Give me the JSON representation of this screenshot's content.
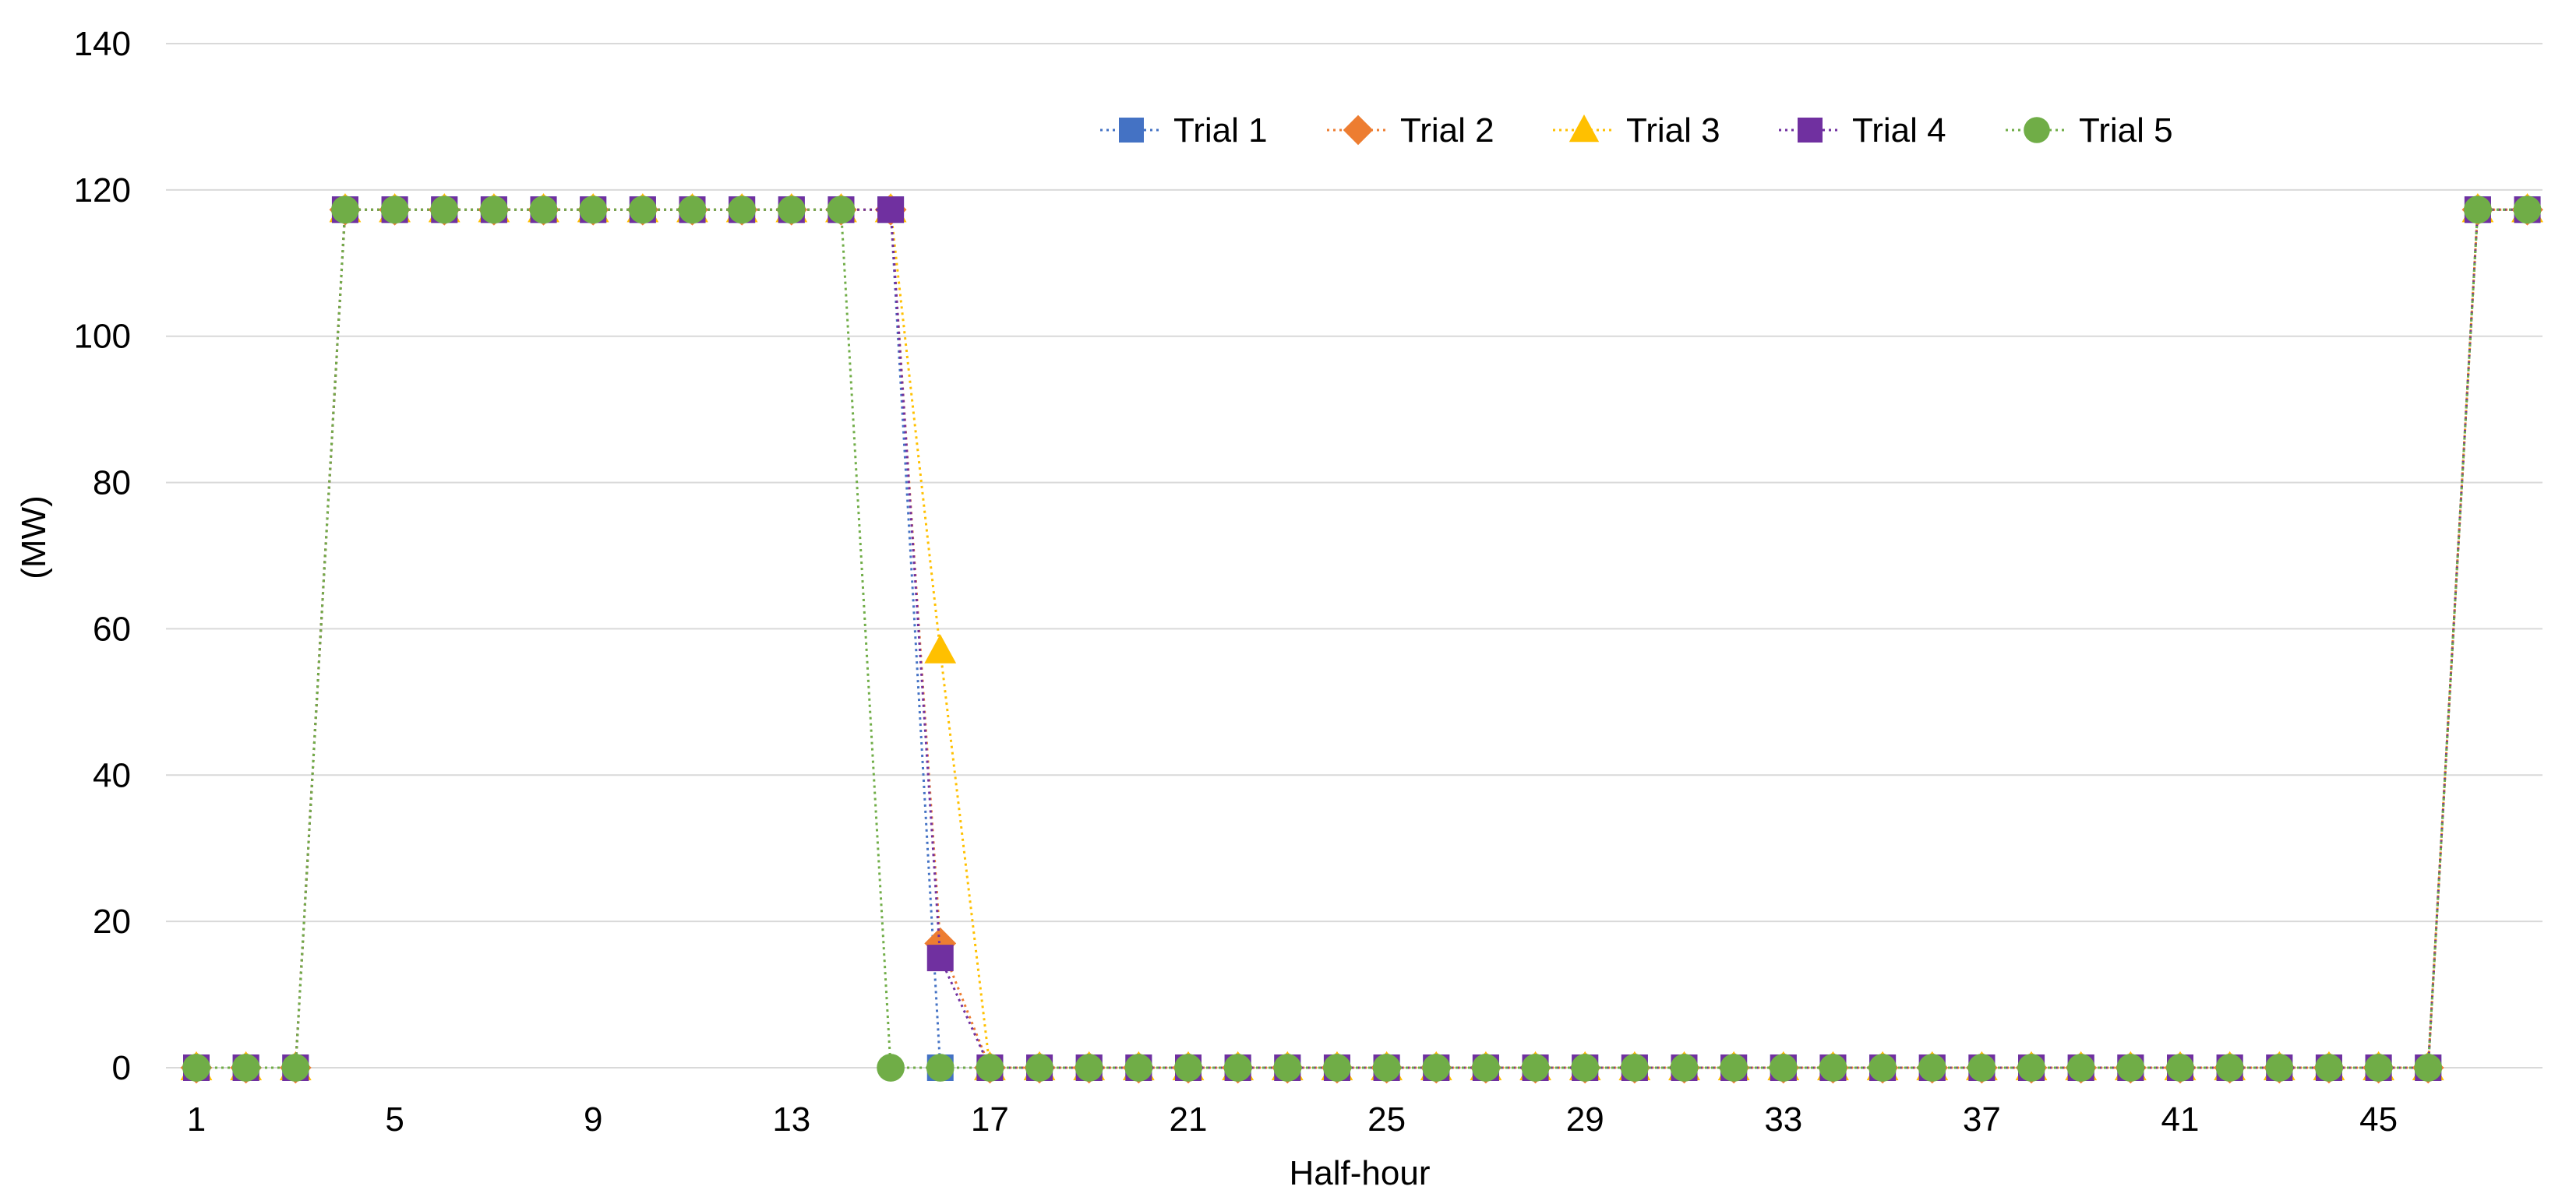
{
  "chart_data": {
    "type": "line",
    "xlabel": "Half-hour",
    "ylabel": "(MW)",
    "xlim": [
      1,
      48
    ],
    "ylim": [
      0,
      140
    ],
    "y_ticks": [
      0,
      20,
      40,
      60,
      80,
      100,
      120,
      140
    ],
    "x_tick_labels": [
      1,
      5,
      9,
      13,
      17,
      21,
      25,
      29,
      33,
      37,
      41,
      45
    ],
    "x": [
      1,
      2,
      3,
      4,
      5,
      6,
      7,
      8,
      9,
      10,
      11,
      12,
      13,
      14,
      15,
      16,
      17,
      18,
      19,
      20,
      21,
      22,
      23,
      24,
      25,
      26,
      27,
      28,
      29,
      30,
      31,
      32,
      33,
      34,
      35,
      36,
      37,
      38,
      39,
      40,
      41,
      42,
      43,
      44,
      45,
      46,
      47,
      48
    ],
    "grid": "horizontal",
    "legend_position": "top",
    "series": [
      {
        "name": "Trial 1",
        "color": "#4472C4",
        "marker": "square",
        "values": [
          0,
          0,
          0,
          117.3,
          117.3,
          117.3,
          117.3,
          117.3,
          117.3,
          117.3,
          117.3,
          117.3,
          117.3,
          117.3,
          117.3,
          0,
          0,
          0,
          0,
          0,
          0,
          0,
          0,
          0,
          0,
          0,
          0,
          0,
          0,
          0,
          0,
          0,
          0,
          0,
          0,
          0,
          0,
          0,
          0,
          0,
          0,
          0,
          0,
          0,
          0,
          0,
          117.3,
          117.3
        ]
      },
      {
        "name": "Trial 2",
        "color": "#ED7D31",
        "marker": "diamond",
        "values": [
          0,
          0,
          0,
          117.3,
          117.3,
          117.3,
          117.3,
          117.3,
          117.3,
          117.3,
          117.3,
          117.3,
          117.3,
          117.3,
          117.3,
          17,
          0,
          0,
          0,
          0,
          0,
          0,
          0,
          0,
          0,
          0,
          0,
          0,
          0,
          0,
          0,
          0,
          0,
          0,
          0,
          0,
          0,
          0,
          0,
          0,
          0,
          0,
          0,
          0,
          0,
          0,
          117.3,
          117.3
        ]
      },
      {
        "name": "Trial 3",
        "color": "#FFC000",
        "marker": "triangle",
        "values": [
          0,
          0,
          0,
          117.3,
          117.3,
          117.3,
          117.3,
          117.3,
          117.3,
          117.3,
          117.3,
          117.3,
          117.3,
          117.3,
          117.3,
          57,
          0,
          0,
          0,
          0,
          0,
          0,
          0,
          0,
          0,
          0,
          0,
          0,
          0,
          0,
          0,
          0,
          0,
          0,
          0,
          0,
          0,
          0,
          0,
          0,
          0,
          0,
          0,
          0,
          0,
          0,
          117.3,
          117.3
        ]
      },
      {
        "name": "Trial 4",
        "color": "#7030A0",
        "marker": "square",
        "values": [
          0,
          0,
          0,
          117.3,
          117.3,
          117.3,
          117.3,
          117.3,
          117.3,
          117.3,
          117.3,
          117.3,
          117.3,
          117.3,
          117.3,
          15,
          0,
          0,
          0,
          0,
          0,
          0,
          0,
          0,
          0,
          0,
          0,
          0,
          0,
          0,
          0,
          0,
          0,
          0,
          0,
          0,
          0,
          0,
          0,
          0,
          0,
          0,
          0,
          0,
          0,
          0,
          117.3,
          117.3
        ]
      },
      {
        "name": "Trial 5",
        "color": "#70AD47",
        "marker": "circle",
        "values": [
          0,
          0,
          0,
          117.3,
          117.3,
          117.3,
          117.3,
          117.3,
          117.3,
          117.3,
          117.3,
          117.3,
          117.3,
          117.3,
          0,
          0,
          0,
          0,
          0,
          0,
          0,
          0,
          0,
          0,
          0,
          0,
          0,
          0,
          0,
          0,
          0,
          0,
          0,
          0,
          0,
          0,
          0,
          0,
          0,
          0,
          0,
          0,
          0,
          0,
          0,
          0,
          117.3,
          117.3
        ]
      }
    ]
  }
}
